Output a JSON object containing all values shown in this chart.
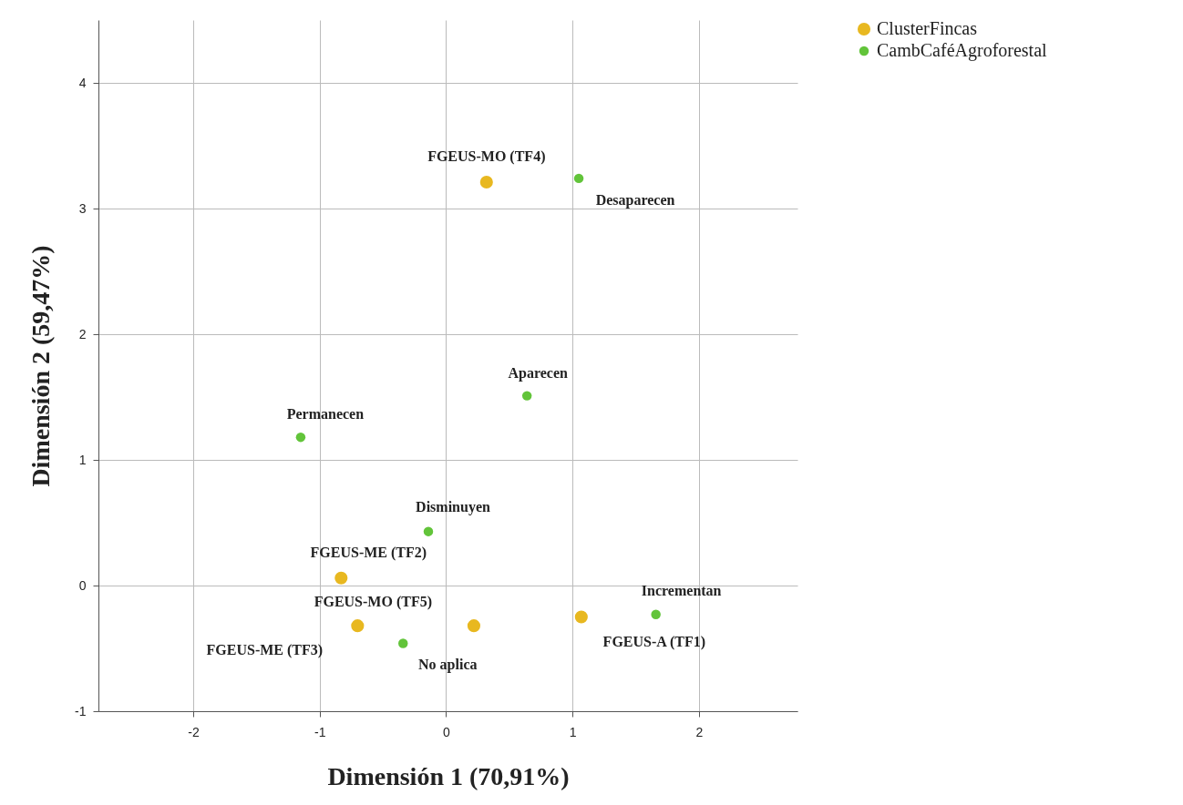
{
  "chart_data": {
    "type": "scatter",
    "xlabel": "Dimensión 1 (70,91%)",
    "ylabel": "Dimensión 2 (59,47%)",
    "xlim": [
      -2.75,
      2.78
    ],
    "ylim": [
      -1,
      4.5
    ],
    "xticks": [
      -2,
      -1,
      0,
      1,
      2
    ],
    "yticks": [
      -1,
      0,
      1,
      2,
      3,
      4
    ],
    "grid": true,
    "legend": "top right",
    "marker": "circle",
    "series": [
      {
        "name": "ClusterFincas",
        "color": "#e8b820",
        "x": [
          0.32,
          -0.83,
          0.22,
          -0.7,
          1.07
        ],
        "values": [
          3.21,
          0.06,
          -0.32,
          -0.32,
          -0.25
        ]
      },
      {
        "name": "CambCaféAgroforestal",
        "color": "#62c43a",
        "x": [
          1.05,
          0.64,
          -1.15,
          -0.14,
          1.66,
          -0.34
        ],
        "values": [
          3.24,
          1.51,
          1.18,
          0.43,
          -0.23,
          -0.46
        ]
      }
    ],
    "annotations": [
      {
        "text": "FGEUS-MO (TF4)",
        "x": 0.32,
        "y": 3.21
      },
      {
        "text": "FGEUS-ME (TF2)",
        "x": -0.83,
        "y": 0.06
      },
      {
        "text": "FGEUS-MO (TF5)",
        "x": -0.7,
        "y": -0.32
      },
      {
        "text": "FGEUS-ME (TF3)",
        "x": -0.7,
        "y": -0.32
      },
      {
        "text": "FGEUS-A (TF1)",
        "x": 1.07,
        "y": -0.25
      },
      {
        "text": "Desaparecen",
        "x": 1.05,
        "y": 3.24
      },
      {
        "text": "Aparecen",
        "x": 0.64,
        "y": 1.51
      },
      {
        "text": "Permanecen",
        "x": -1.15,
        "y": 1.18
      },
      {
        "text": "Disminuyen",
        "x": -0.14,
        "y": 0.43
      },
      {
        "text": "Incrementan",
        "x": 1.66,
        "y": -0.23
      },
      {
        "text": "No aplica",
        "x": -0.34,
        "y": -0.46
      }
    ]
  }
}
